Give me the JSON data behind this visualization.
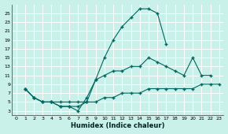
{
  "xlabel": "Humidex (Indice chaleur)",
  "bg_color": "#caf0ea",
  "line_color": "#006660",
  "grid_color": "#ffffff",
  "xlim": [
    -0.5,
    23.5
  ],
  "ylim": [
    2,
    27
  ],
  "xticks": [
    0,
    1,
    2,
    3,
    4,
    5,
    6,
    7,
    8,
    9,
    10,
    11,
    12,
    13,
    14,
    15,
    16,
    17,
    18,
    19,
    20,
    21,
    22,
    23
  ],
  "yticks": [
    3,
    5,
    7,
    9,
    11,
    13,
    15,
    17,
    19,
    21,
    23,
    25
  ],
  "line1_x": [
    1,
    2,
    3,
    4,
    5,
    6,
    7,
    8,
    9,
    10,
    11,
    12,
    13,
    14,
    15,
    16,
    17
  ],
  "line1_y": [
    8,
    6,
    5,
    5,
    4,
    4,
    3,
    6,
    10,
    15,
    19,
    22,
    24,
    26,
    26,
    25,
    18
  ],
  "line2_x": [
    1,
    2,
    3,
    4,
    5,
    6,
    7,
    8,
    9,
    10,
    11,
    12,
    13,
    14,
    15,
    16,
    17,
    18,
    19,
    20,
    21,
    22
  ],
  "line2_y": [
    8,
    6,
    5,
    5,
    4,
    4,
    4,
    5,
    10,
    11,
    12,
    12,
    13,
    13,
    15,
    14,
    13,
    12,
    11,
    15,
    11,
    11
  ],
  "line3_x": [
    1,
    2,
    3,
    4,
    5,
    6,
    7,
    8,
    9,
    10,
    11,
    12,
    13,
    14,
    15,
    16,
    17,
    18,
    19,
    20,
    21,
    22,
    23
  ],
  "line3_y": [
    8,
    6,
    5,
    5,
    5,
    5,
    5,
    5,
    5,
    6,
    6,
    7,
    7,
    7,
    8,
    8,
    8,
    8,
    8,
    8,
    9,
    9,
    9
  ]
}
